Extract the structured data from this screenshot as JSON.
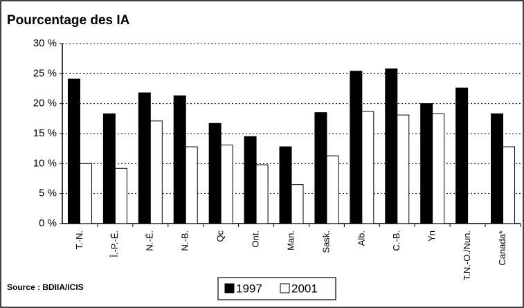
{
  "chart_data": {
    "type": "bar",
    "title": "Pourcentage des IA",
    "source": "Source : BDIIA/ICIS",
    "categories": [
      "T.-N.",
      "Î.-P.-É.",
      "N.-É.",
      "N.-B.",
      "Qc",
      "Ont.",
      "Man.",
      "Sask.",
      "Alb.",
      "C.-B.",
      "Yn",
      "T.N.-O./Nun.",
      "Canada*"
    ],
    "series": [
      {
        "name": "1997",
        "color": "#000000",
        "values": [
          24.1,
          18.3,
          21.8,
          21.3,
          16.7,
          14.5,
          12.8,
          18.5,
          25.4,
          25.8,
          20.0,
          22.6,
          18.3
        ]
      },
      {
        "name": "2001",
        "color": "#ffffff",
        "values": [
          10.0,
          9.2,
          17.1,
          12.8,
          13.1,
          9.8,
          6.5,
          11.3,
          18.7,
          18.1,
          18.3,
          null,
          12.8
        ]
      }
    ],
    "ylim": [
      0,
      30
    ],
    "yticks": [
      {
        "value": 0,
        "label": "0 %"
      },
      {
        "value": 5,
        "label": "5 %"
      },
      {
        "value": 10,
        "label": "10 %"
      },
      {
        "value": 15,
        "label": "15 %"
      },
      {
        "value": 20,
        "label": "20 %"
      },
      {
        "value": 25,
        "label": "25 %"
      },
      {
        "value": 30,
        "label": "30 %"
      }
    ],
    "grid": true
  }
}
